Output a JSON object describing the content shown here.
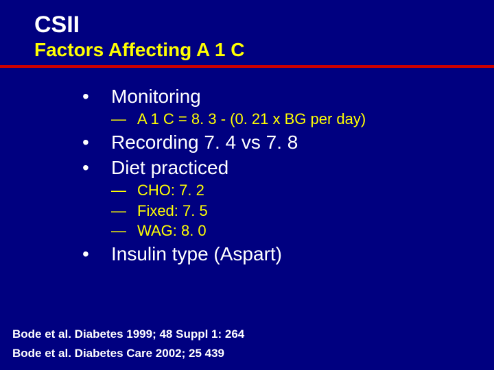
{
  "header": {
    "title": "CSII",
    "subtitle": "Factors Affecting A 1 C",
    "subtitle_color": "#ffff00",
    "underline_color": "#cc0000"
  },
  "bullets": {
    "b1": {
      "label": "Monitoring"
    },
    "b1s1": {
      "label": "A 1 C = 8. 3 - (0. 21 x BG per day)",
      "color": "#ffff00"
    },
    "b2": {
      "label": "Recording 7. 4 vs 7. 8"
    },
    "b3": {
      "label": "Diet practiced"
    },
    "b3s1": {
      "label": "CHO: 7. 2",
      "color": "#ffff00"
    },
    "b3s2": {
      "label": "Fixed: 7. 5",
      "color": "#ffff00"
    },
    "b3s3": {
      "label": "WAG: 8. 0",
      "color": "#ffff00"
    },
    "b4": {
      "label": "Insulin type (Aspart)"
    }
  },
  "citations": {
    "c1": "Bode et al. Diabetes 1999; 48 Suppl 1: 264",
    "c2": "Bode et al. Diabetes Care 2002; 25 439"
  }
}
